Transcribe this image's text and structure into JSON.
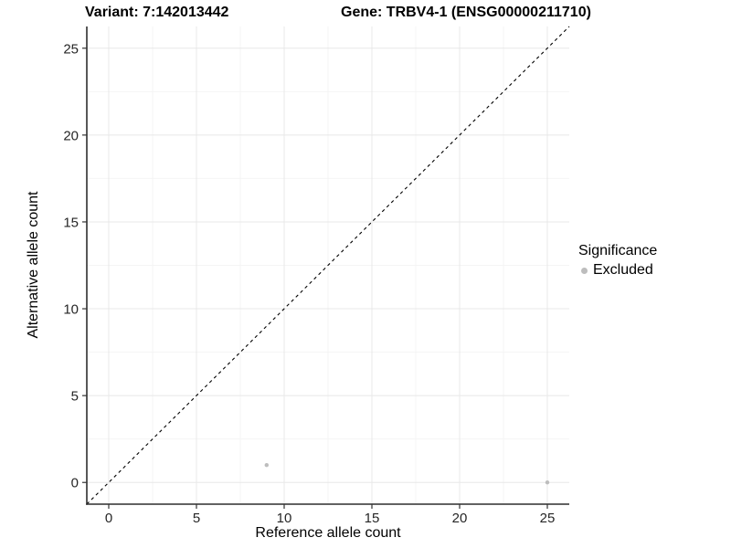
{
  "titles": {
    "variant": "Variant: 7:142013442",
    "gene": "Gene: TRBV4-1 (ENSG00000211710)"
  },
  "legend": {
    "title": "Significance",
    "items": [
      {
        "label": "Excluded",
        "color": "#bdbdbd"
      }
    ]
  },
  "chart_data": {
    "type": "scatter",
    "title_left": "Variant: 7:142013442",
    "title_right": "Gene: TRBV4-1 (ENSG00000211710)",
    "xlabel": "Reference allele count",
    "ylabel": "Alternative allele count",
    "xlim": [
      -1.25,
      26.25
    ],
    "ylim": [
      -1.25,
      26.25
    ],
    "x_ticks": [
      0,
      5,
      10,
      15,
      20,
      25
    ],
    "y_ticks": [
      0,
      5,
      10,
      15,
      20,
      25
    ],
    "x_minor_ticks": [
      2.5,
      7.5,
      12.5,
      17.5,
      22.5
    ],
    "y_minor_ticks": [
      2.5,
      7.5,
      12.5,
      17.5,
      22.5
    ],
    "grid": "major+minor",
    "legend_position": "right",
    "series": [
      {
        "name": "Excluded",
        "color": "#bdbdbd",
        "marker": "circle",
        "marker_radius": 2.2,
        "points": [
          [
            9,
            1
          ],
          [
            25,
            0
          ]
        ]
      }
    ],
    "reference_line": {
      "kind": "identity y=x",
      "style": "dashed",
      "color": "#000000",
      "from": [
        -1.25,
        -1.25
      ],
      "to": [
        26.25,
        26.25
      ]
    },
    "style": {
      "panel_bg": "#ffffff",
      "grid_major_color": "#e8e8e8",
      "grid_minor_color": "#f4f4f4",
      "axis_line_color": "#2e2e2e",
      "tick_color": "#333333",
      "tick_label_color": "#262626"
    }
  }
}
